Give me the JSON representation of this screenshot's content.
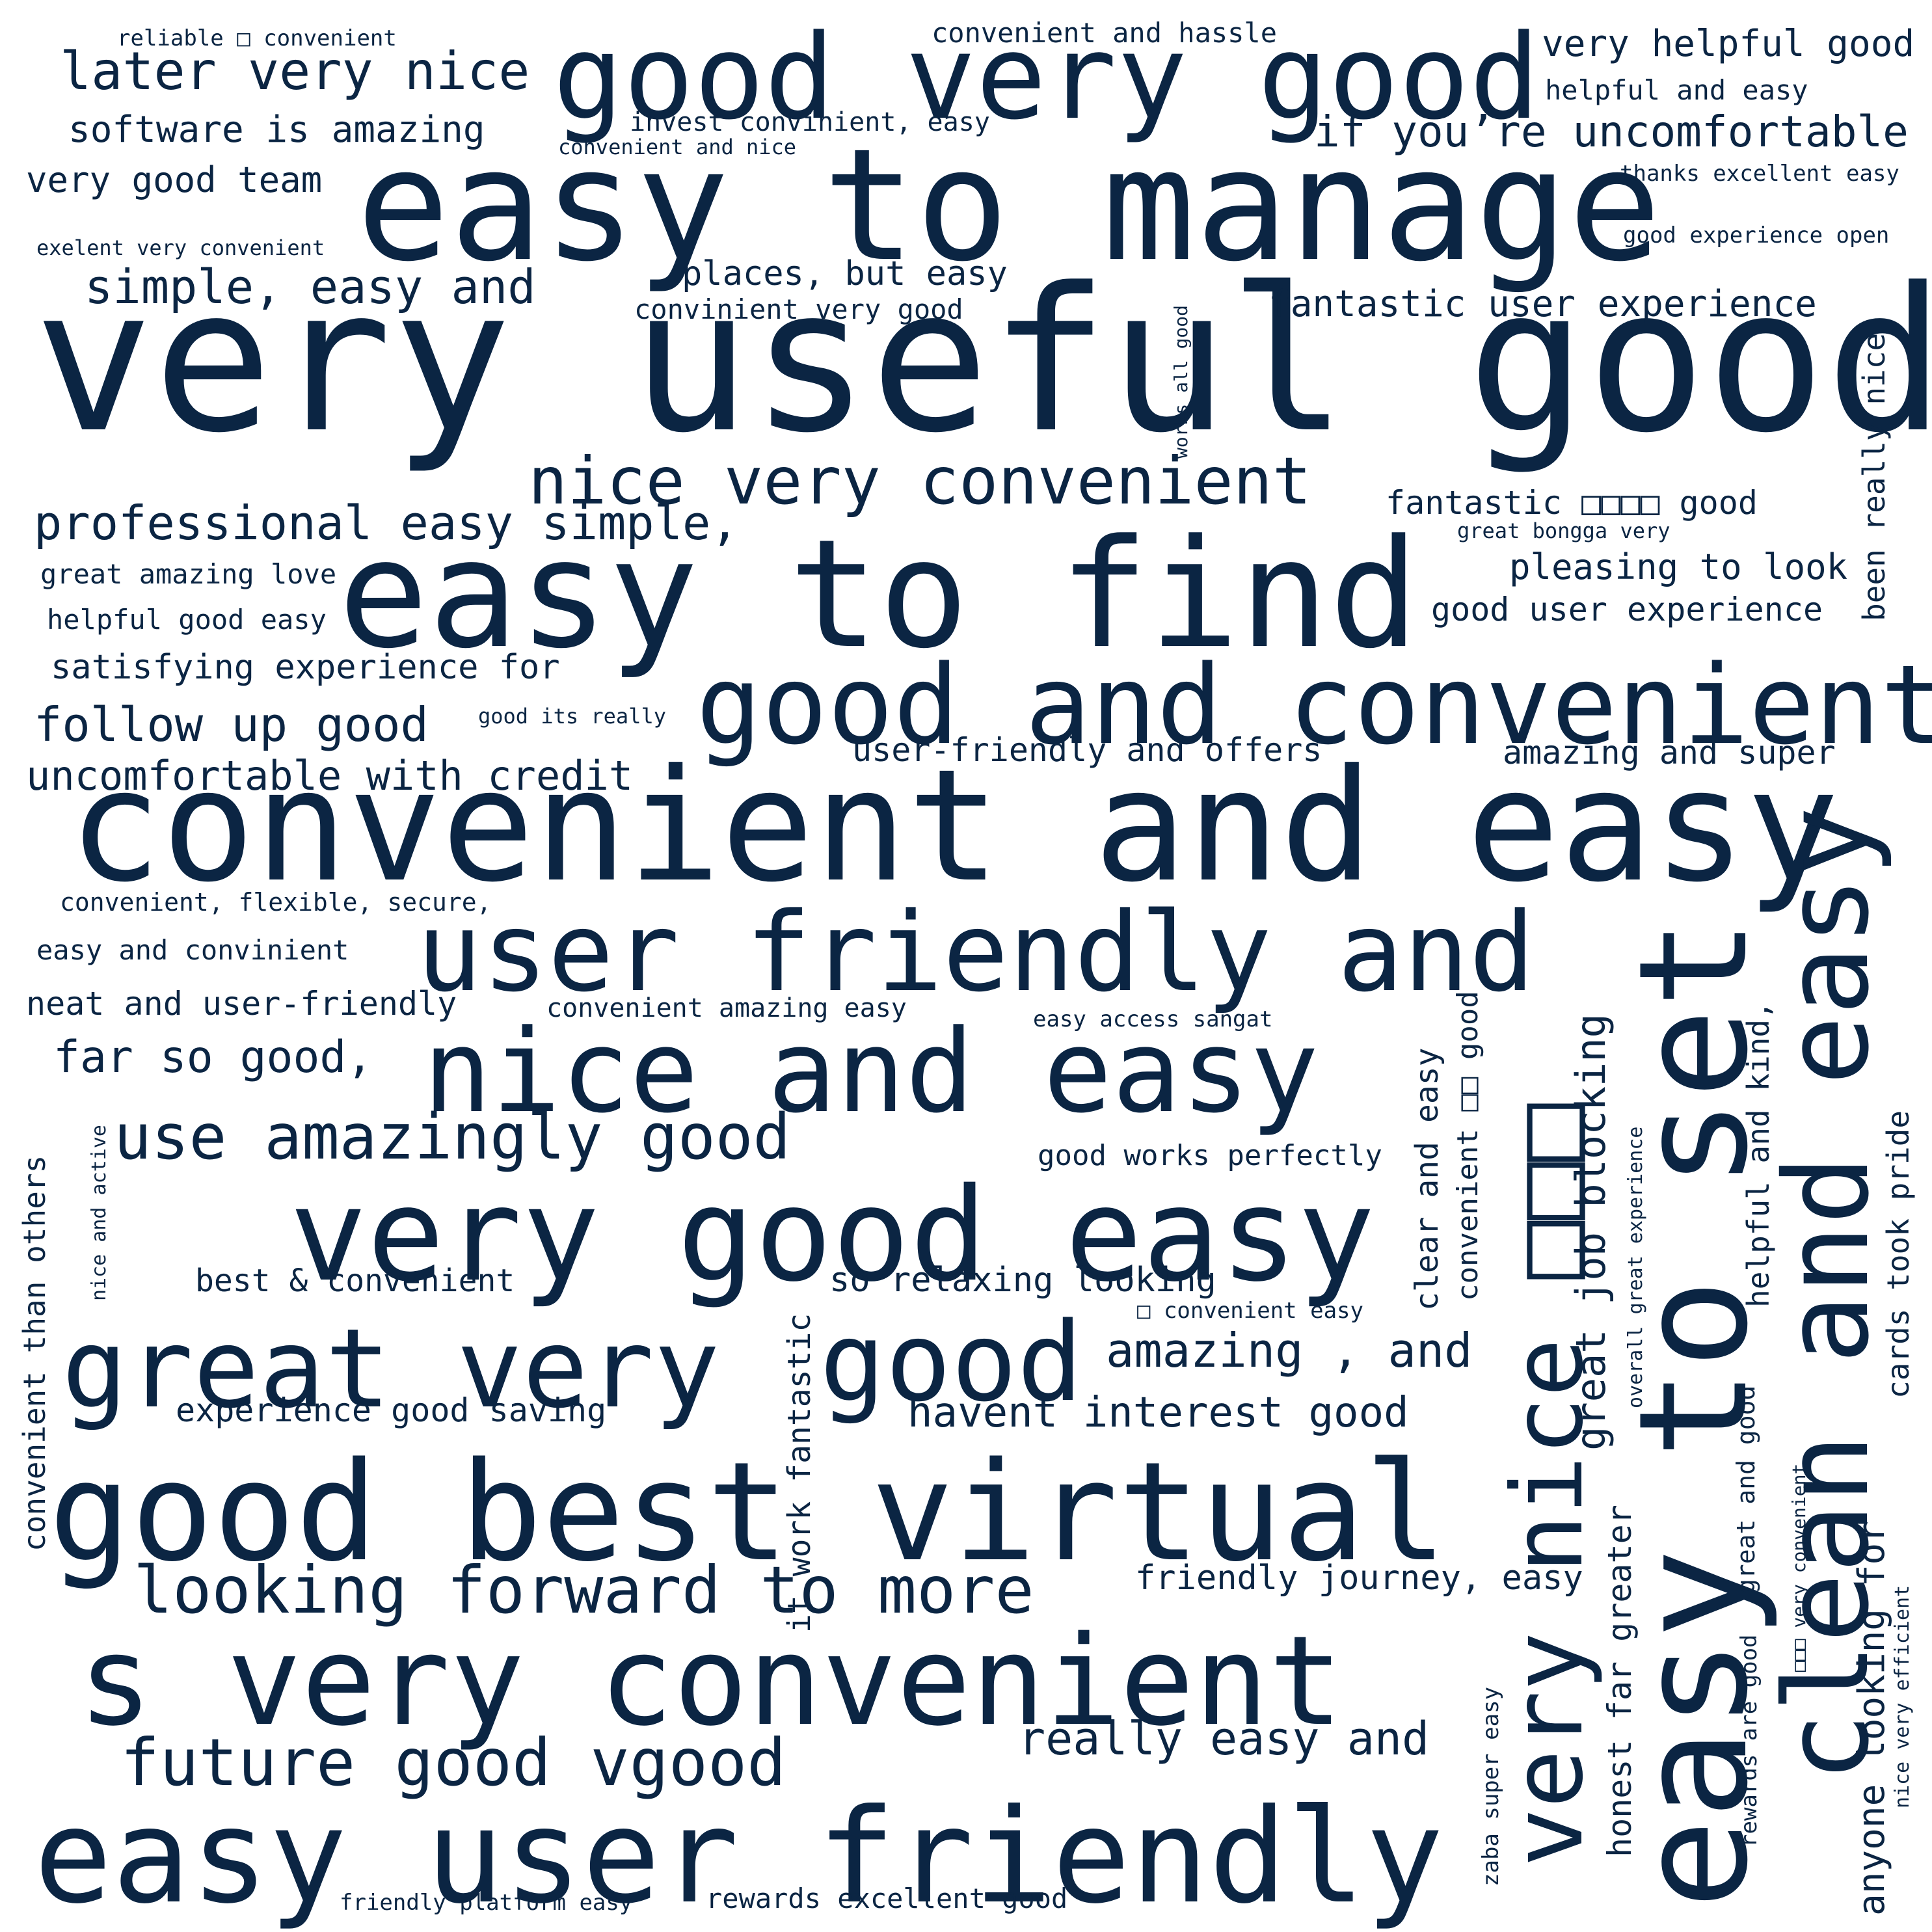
{
  "colors": {
    "text": "#0b2543",
    "background": "#ffffff"
  },
  "words": [
    "very useful good",
    "easy to manage",
    "convenient and easy",
    "easy to find",
    "good very good",
    "good and convenient",
    "user friendly and",
    "nice and easy",
    "very good easy",
    "great very",
    "good",
    "good best virtual",
    "s very convenient",
    "easy user friendly",
    "easy to set",
    "clean and easy",
    "very nice □□□",
    "looking forward to more",
    "future good vgood",
    "nice very convenient",
    "use amazingly good",
    "later very nice",
    "professional easy simple,",
    "simple, easy and",
    "if you’re uncomfortable",
    "software is amazing",
    "very good team",
    "follow up good",
    "uncomfortable with credit",
    "fantastic user experience",
    "places, but easy",
    "convinient very good",
    "invest convinient, easy",
    "convenient and nice",
    "convenient and hassle",
    "very helpful good",
    "helpful and easy",
    "thanks excellent easy",
    "good experience open",
    "reliable □ convenient",
    "exelent very convenient",
    "fantastic □□□□ good",
    "great bongga very",
    "pleasing to look",
    "good user experience",
    "great amazing love",
    "helpful good easy",
    "satisfying experience for",
    "good its really",
    "user-friendly and offers",
    "amazing and super",
    "convenient, flexible, secure,",
    "easy and convinient",
    "neat and user-friendly",
    "convenient amazing easy",
    "easy access sangat",
    "far so good,",
    "good works perfectly",
    "best & convenient",
    "so relaxing looking",
    "□ convenient easy",
    "amazing , and",
    "experience good saving",
    "havent interest good",
    "friendly journey, easy",
    "really easy and",
    "friendly platform easy",
    "rewards excellent good",
    "works all good",
    "been really nice",
    "convenient than others",
    "nice and active",
    "it work fantastic",
    "clear and easy",
    "convenient □□ good",
    "great job blocking",
    "overall great experience",
    "helpful and kind,",
    "cards took pride",
    "anyone looking for",
    "honest far greater",
    "zaba super easy",
    "rewards are good",
    "great and good",
    "□□□ very convenient",
    "nice very efficient"
  ]
}
